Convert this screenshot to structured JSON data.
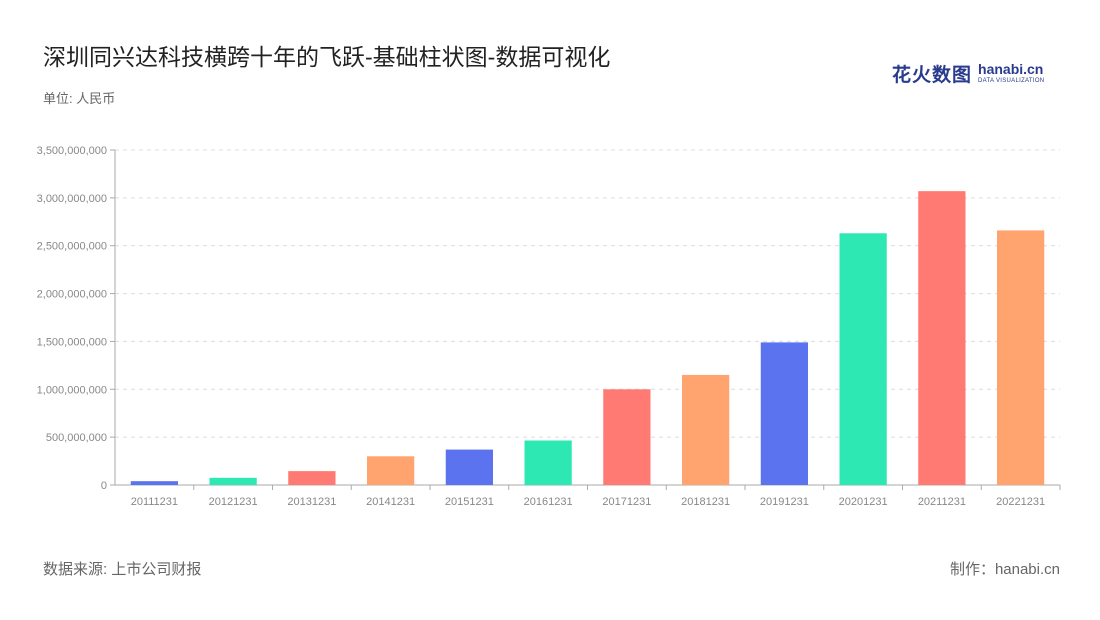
{
  "header": {
    "title": "深圳同兴达科技横跨十年的飞跃-基础柱状图-数据可视化",
    "unit": "单位: 人民币"
  },
  "logo": {
    "cn": "花火数图",
    "en": "hanabi.cn",
    "en_small": "DATA VISUALIZATION"
  },
  "footer": {
    "source": "数据来源: 上市公司财报",
    "maker": "制作：hanabi.cn"
  },
  "chart_data": {
    "type": "bar",
    "title": "深圳同兴达科技横跨十年的飞跃-基础柱状图-数据可视化",
    "categories": [
      "20111231",
      "20121231",
      "20131231",
      "20141231",
      "20151231",
      "20161231",
      "20171231",
      "20181231",
      "20191231",
      "20201231",
      "20211231",
      "20221231"
    ],
    "values": [
      40000000,
      75000000,
      145000000,
      300000000,
      370000000,
      465000000,
      1000000000,
      1150000000,
      1490000000,
      2630000000,
      3070000000,
      2660000000
    ],
    "colors": [
      "#5b73ef",
      "#2de8b3",
      "#ff7a72",
      "#ffa46e",
      "#5b73ef",
      "#2de8b3",
      "#ff7a72",
      "#ffa46e",
      "#5b73ef",
      "#2de8b3",
      "#ff7a72",
      "#ffa46e"
    ],
    "ylim": [
      0,
      3500000000
    ],
    "yticks": [
      0,
      500000000,
      1000000000,
      1500000000,
      2000000000,
      2500000000,
      3000000000,
      3500000000
    ],
    "ytick_labels": [
      "0",
      "500,000,000",
      "1,000,000,000",
      "1,500,000,000",
      "2,000,000,000",
      "2,500,000,000",
      "3,000,000,000",
      "3,500,000,000"
    ],
    "grid": true,
    "grid_color": "#dcdcdc",
    "axis_color": "#aaaaaa"
  }
}
